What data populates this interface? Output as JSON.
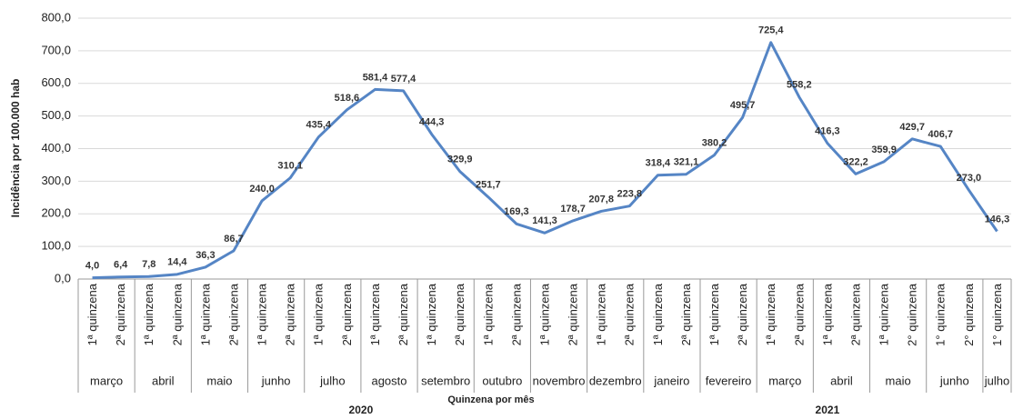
{
  "chart_data": {
    "type": "line",
    "y_label": "Incidência por 100.000 hab",
    "x_label": "Quinzena por mês",
    "categories": [
      "1ª quinzena",
      "2ª quinzena",
      "1ª quinzena",
      "2ª quinzena",
      "1ª quinzena",
      "2ª quinzena",
      "1ª quinzena",
      "2ª quinzena",
      "1ª quinzena",
      "2ª quinzena",
      "1ª quinzena",
      "2ª quinzena",
      "1ª quinzena",
      "2ª quinzena",
      "1ª quinzena",
      "2ª quinzena",
      "1ª quinzena",
      "2ª quinzena",
      "1ª quinzena",
      "2ª quinzena",
      "1ª quinzena",
      "2ª quinzena",
      "1ª quinzena",
      "2ª quinzena",
      "1ª quinzena",
      "2ª quinzena",
      "1ª quinzena",
      "2ª quinzena",
      "1ª quinzena",
      "2° quinzena",
      "1° quinzena",
      "2° quinzena",
      "1° quinzena"
    ],
    "months": [
      {
        "label": "março",
        "size": 2
      },
      {
        "label": "abril",
        "size": 2
      },
      {
        "label": "maio",
        "size": 2
      },
      {
        "label": "junho",
        "size": 2
      },
      {
        "label": "julho",
        "size": 2
      },
      {
        "label": "agosto",
        "size": 2
      },
      {
        "label": "setembro",
        "size": 2
      },
      {
        "label": "outubro",
        "size": 2
      },
      {
        "label": "novembro",
        "size": 2
      },
      {
        "label": "dezembro",
        "size": 2
      },
      {
        "label": "janeiro",
        "size": 2
      },
      {
        "label": "fevereiro",
        "size": 2
      },
      {
        "label": "março",
        "size": 2
      },
      {
        "label": "abril",
        "size": 2
      },
      {
        "label": "maio",
        "size": 2
      },
      {
        "label": "junho",
        "size": 2
      },
      {
        "label": "julho",
        "size": 1
      }
    ],
    "years": [
      {
        "label": "2020",
        "size": 20
      },
      {
        "label": "2021",
        "size": 13
      }
    ],
    "series": [
      {
        "name": "Incidência",
        "color": "#5585c5",
        "values": [
          4.0,
          6.4,
          7.8,
          14.4,
          36.3,
          86.7,
          240.0,
          310.1,
          435.4,
          518.6,
          581.4,
          577.4,
          444.3,
          329.9,
          251.7,
          169.3,
          141.3,
          178.7,
          207.8,
          223.8,
          318.4,
          321.1,
          380.2,
          495.7,
          725.4,
          558.2,
          416.3,
          322.2,
          359.9,
          429.7,
          406.7,
          273.0,
          146.3
        ],
        "value_labels": [
          "4,0",
          "6,4",
          "7,8",
          "14,4",
          "36,3",
          "86,7",
          "240,0",
          "310,1",
          "435,4",
          "518,6",
          "581,4",
          "577,4",
          "444,3",
          "329,9",
          "251,7",
          "169,3",
          "141,3",
          "178,7",
          "207,8",
          "223,8",
          "318,4",
          "321,1",
          "380,2",
          "495,7",
          "725,4",
          "558,2",
          "416,3",
          "322,2",
          "359,9",
          "429,7",
          "406,7",
          "273,0",
          "146,3"
        ]
      }
    ],
    "ylim": [
      0,
      800
    ],
    "yticks": [
      {
        "value": 0,
        "label": "0,0"
      },
      {
        "value": 100,
        "label": "100,0"
      },
      {
        "value": 200,
        "label": "200,0"
      },
      {
        "value": 300,
        "label": "300,0"
      },
      {
        "value": 400,
        "label": "400,0"
      },
      {
        "value": 500,
        "label": "500,0"
      },
      {
        "value": 600,
        "label": "600,0"
      },
      {
        "value": 700,
        "label": "700,0"
      },
      {
        "value": 800,
        "label": "800,0"
      }
    ],
    "grid": true
  }
}
